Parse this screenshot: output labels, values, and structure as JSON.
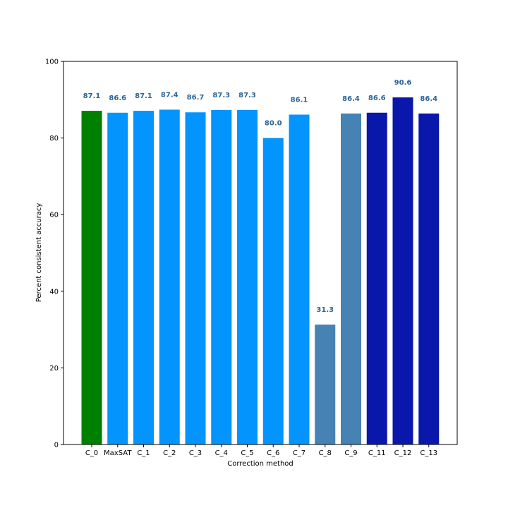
{
  "chart_data": {
    "type": "bar",
    "xlabel": "Correction method",
    "ylabel": "Percent consistent accuracy",
    "ylim": [
      0,
      100
    ],
    "yticks": [
      0,
      20,
      40,
      60,
      80,
      100
    ],
    "categories": [
      "C_0",
      "MaxSAT",
      "C_1",
      "C_2",
      "C_3",
      "C_4",
      "C_5",
      "C_6",
      "C_7",
      "C_8",
      "C_9",
      "C_11",
      "C_12",
      "C_13"
    ],
    "values": [
      87.1,
      86.6,
      87.1,
      87.4,
      86.7,
      87.3,
      87.3,
      80.0,
      86.1,
      31.3,
      86.4,
      86.6,
      90.6,
      86.4
    ],
    "value_labels": [
      "87.1",
      "86.6",
      "87.1",
      "87.4",
      "86.7",
      "87.3",
      "87.3",
      "80.0",
      "86.1",
      "31.3",
      "86.4",
      "86.6",
      "90.6",
      "86.4"
    ],
    "bar_colors": [
      "#008000",
      "#0394fd",
      "#0394fd",
      "#0394fd",
      "#0394fd",
      "#0394fd",
      "#0394fd",
      "#0394fd",
      "#0394fd",
      "#4682b4",
      "#4682b4",
      "#0a17ab",
      "#0a17ab",
      "#0a17ab"
    ],
    "label_color": "#2a6496",
    "grid": false,
    "legend": false
  }
}
